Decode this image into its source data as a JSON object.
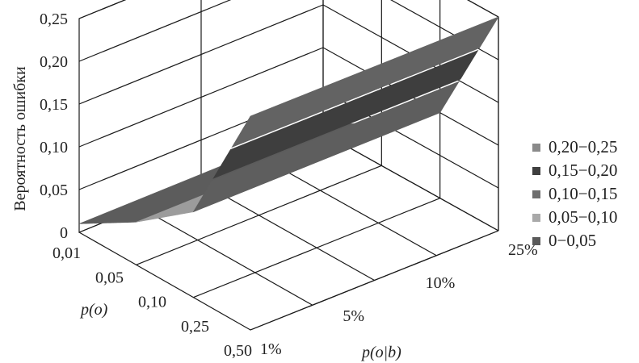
{
  "chart_data": {
    "type": "surface",
    "title": "",
    "zlabel": "Вероятность ошибки",
    "z_ticks": [
      "0",
      "0,05",
      "0,10",
      "0,15",
      "0,20",
      "0,25"
    ],
    "zlim": [
      0,
      0.25
    ],
    "depth_axis": {
      "label": "p(o)",
      "ticks": [
        "0,01",
        "0,05",
        "0,10",
        "0,25",
        "0,50"
      ]
    },
    "x_axis": {
      "label": "p(o|b)",
      "ticks": [
        "1%",
        "5%",
        "10%",
        "25%"
      ]
    },
    "surface": {
      "x_values_percent": [
        1,
        5,
        10,
        25
      ],
      "z_values": [
        0.01,
        0.05,
        0.1,
        0.25
      ],
      "note_constant_along": "p(o)"
    },
    "legend": {
      "placement": "right",
      "items": [
        {
          "label": "0,20−0,25",
          "color": "#8a8a8a"
        },
        {
          "label": "0,15−0,20",
          "color": "#3f3f3f"
        },
        {
          "label": "0,10−0,15",
          "color": "#6e6e6e"
        },
        {
          "label": "0,05−0,10",
          "color": "#a9a9a9"
        },
        {
          "label": "0−0,05",
          "color": "#5a5a5a"
        }
      ]
    },
    "band_colors": {
      "b0": "#5c5c5c",
      "b1": "#9c9c9c",
      "b2": "#5e5e5e",
      "b3": "#3e3e3e",
      "b4": "#636363"
    }
  }
}
